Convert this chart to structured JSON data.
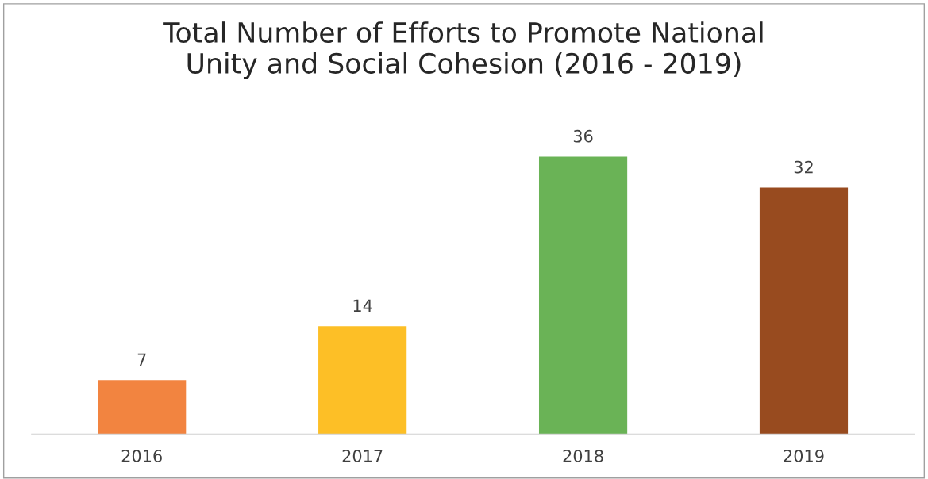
{
  "chart_data": {
    "type": "bar",
    "title": "Total Number of Efforts to Promote National\nUnity and Social Cohesion (2016 - 2019)",
    "categories": [
      "2016",
      "2017",
      "2018",
      "2019"
    ],
    "values": [
      7,
      14,
      36,
      32
    ],
    "colors": [
      "#f28440",
      "#fdbf26",
      "#6ab356",
      "#984b1f"
    ],
    "data_labels": true,
    "grid": false,
    "legend": false,
    "tick_labels": "x"
  }
}
